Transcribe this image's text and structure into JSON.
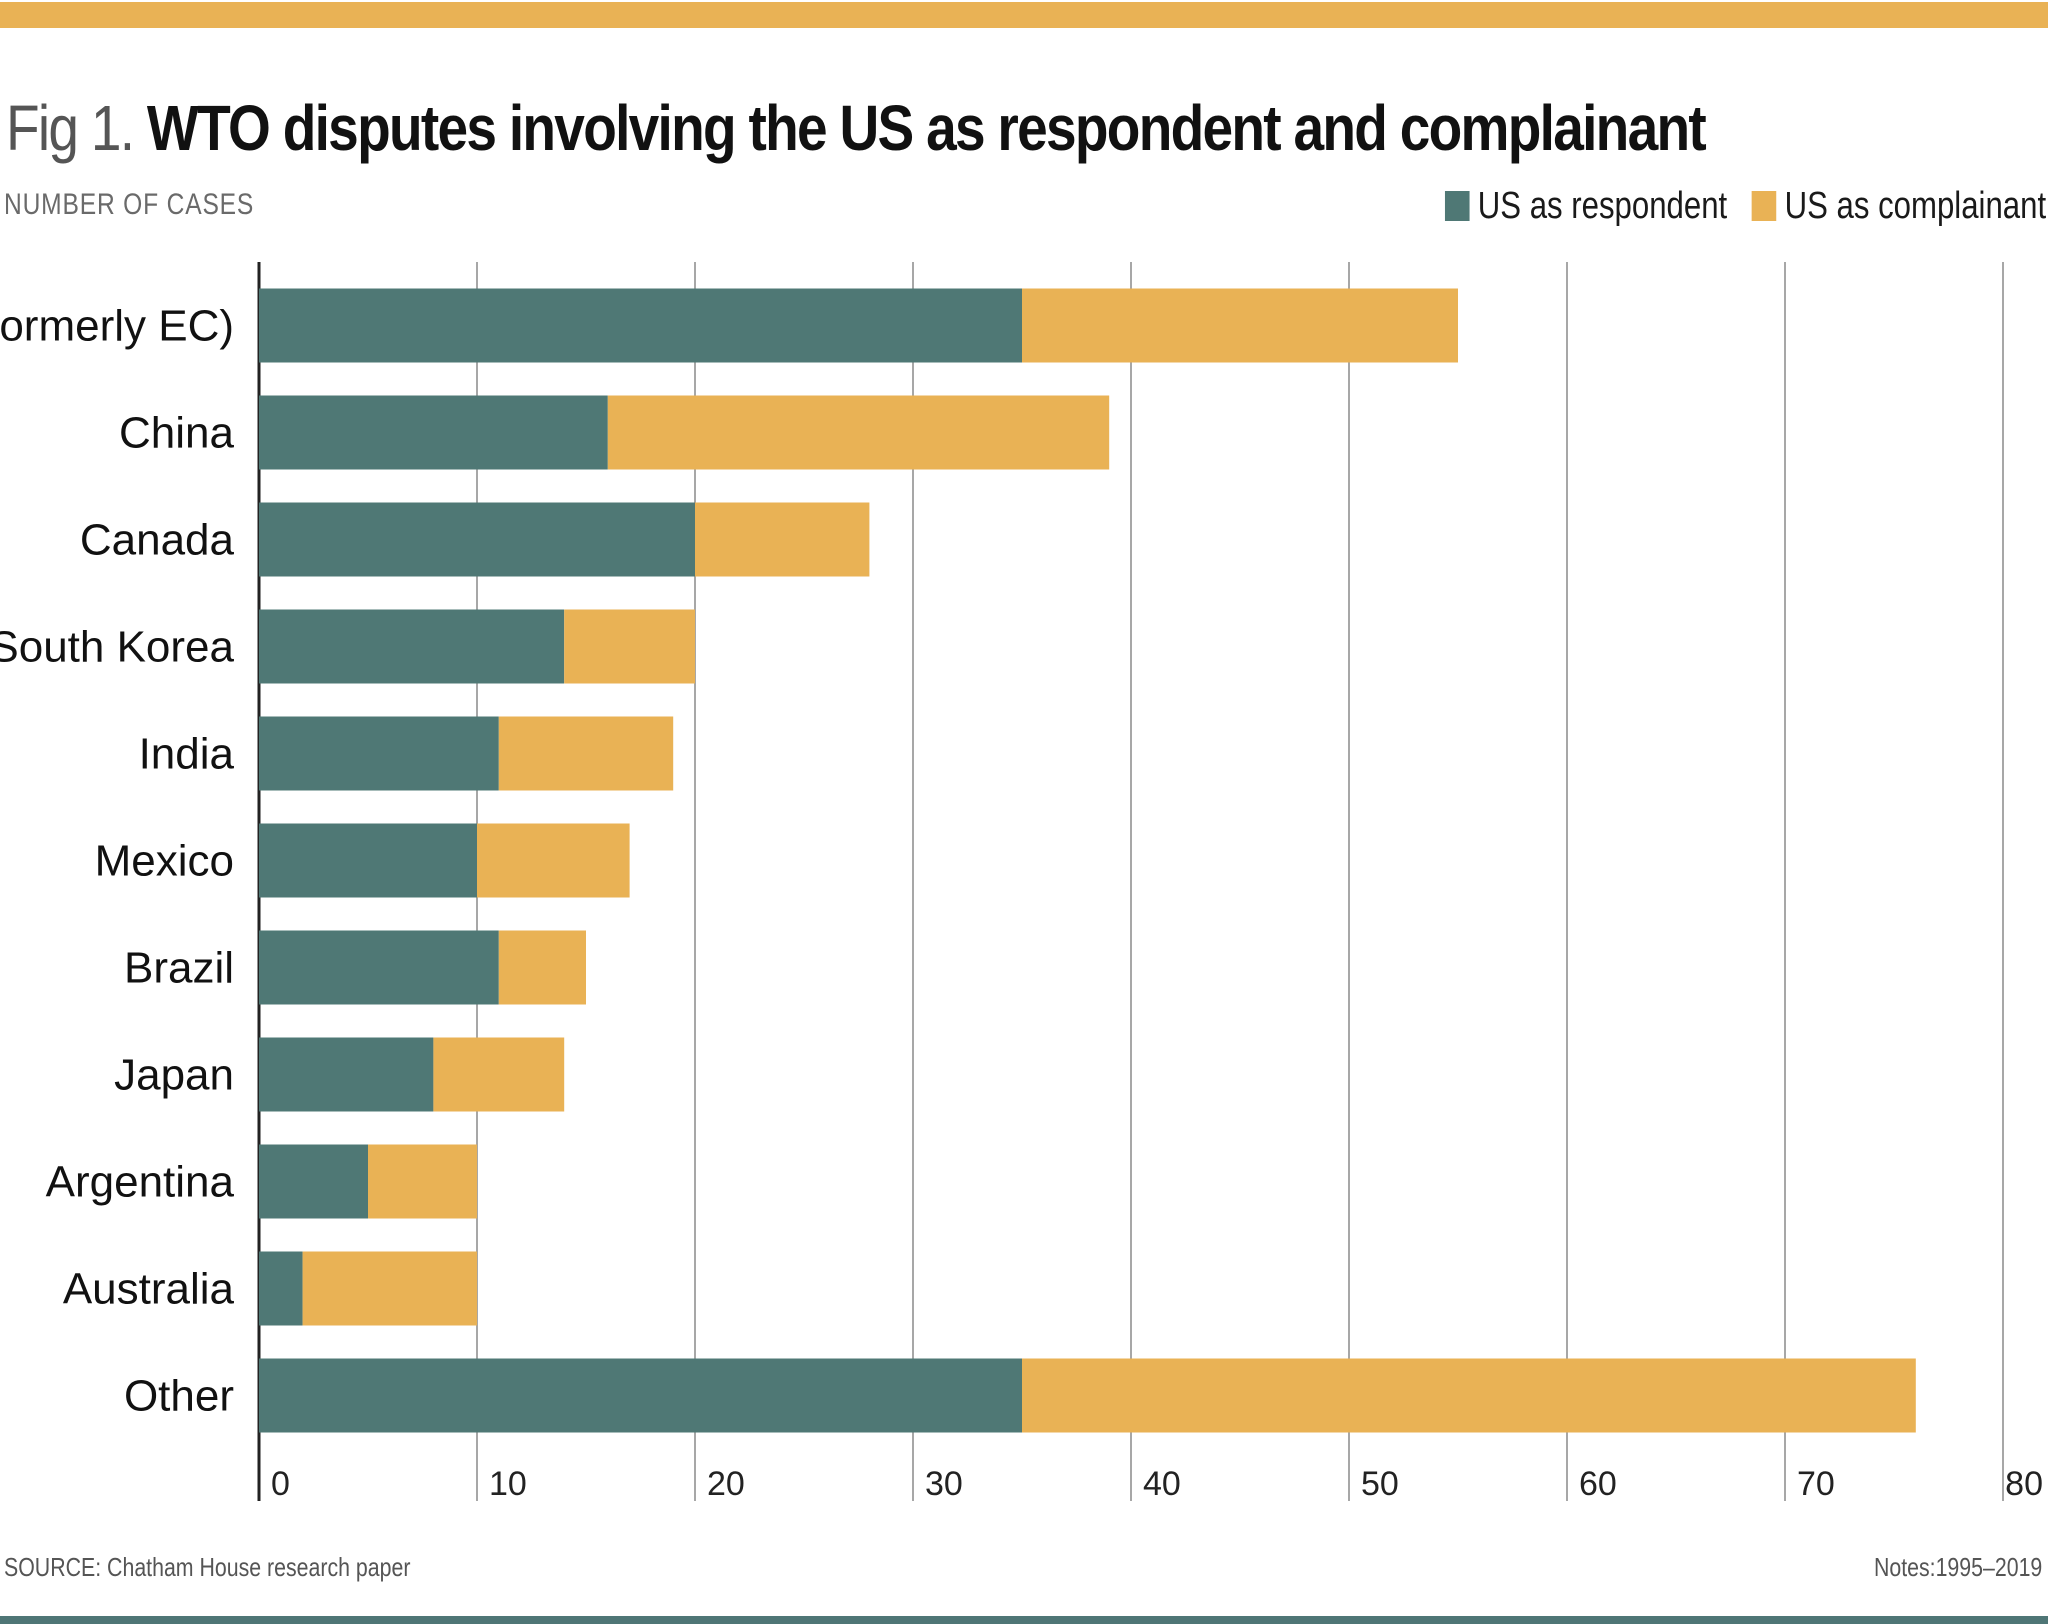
{
  "header": {
    "fig_prefix": "Fig 1.",
    "title": "WTO disputes involving the US as respondent and complainant",
    "subtitle": "NUMBER OF CASES"
  },
  "footer": {
    "source": "SOURCE: Chatham House research paper",
    "notes": "Notes:1995–2019"
  },
  "colors": {
    "respondent": "#4f7875",
    "complainant": "#e9b255",
    "grid": "#8a8a8a"
  },
  "chart_data": {
    "type": "bar",
    "orientation": "horizontal",
    "stacked": true,
    "categories": [
      "EU (formerly EC)",
      "China",
      "Canada",
      "South Korea",
      "India",
      "Mexico",
      "Brazil",
      "Japan",
      "Argentina",
      "Australia",
      "Other"
    ],
    "series": [
      {
        "name": "US as respondent",
        "values": [
          35,
          16,
          20,
          14,
          11,
          10,
          11,
          8,
          5,
          2,
          35
        ]
      },
      {
        "name": "US as complainant",
        "values": [
          20,
          23,
          8,
          6,
          8,
          7,
          4,
          6,
          5,
          8,
          41
        ]
      }
    ],
    "xlim": [
      0,
      80
    ],
    "xticks": [
      0,
      10,
      20,
      30,
      40,
      50,
      60,
      70,
      80
    ],
    "grid": true,
    "legend_position": "top-right",
    "ylabel": "NUMBER OF CASES"
  }
}
